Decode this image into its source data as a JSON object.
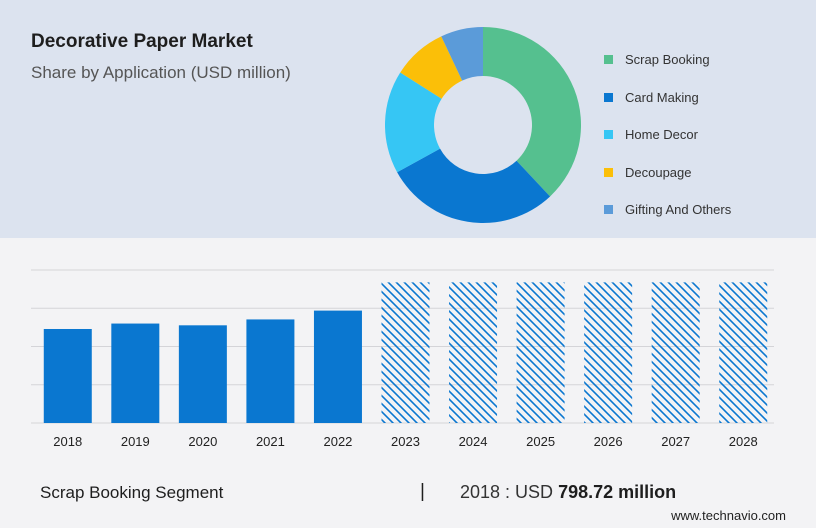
{
  "header": {
    "title": "Decorative Paper Market",
    "subtitle": "Share by Application (USD million)"
  },
  "colors": {
    "bar": "#0a77d0",
    "hatch": "#0a77d0",
    "grid": "#d4d4d8",
    "top_panel": "#dce3ef"
  },
  "chart_data": [
    {
      "type": "pie",
      "variant": "donut",
      "slices": [
        {
          "label": "Scrap Booking",
          "value": 38,
          "color": "#55c08f"
        },
        {
          "label": "Card Making",
          "value": 29,
          "color": "#0a77d0"
        },
        {
          "label": "Home Decor",
          "value": 17,
          "color": "#36c6f4"
        },
        {
          "label": "Decoupage",
          "value": 9,
          "color": "#fbbf08"
        },
        {
          "label": "Gifting And Others",
          "value": 7,
          "color": "#5b9bd9"
        }
      ],
      "legend_position": "right"
    },
    {
      "type": "bar",
      "categories": [
        "2018",
        "2019",
        "2020",
        "2021",
        "2022",
        "2023",
        "2024",
        "2025",
        "2026",
        "2027",
        "2028"
      ],
      "values": [
        798.72,
        845,
        830,
        880,
        955,
        1195,
        1195,
        1195,
        1195,
        1195,
        1195
      ],
      "forecast_from": "2023",
      "ylim": [
        0,
        1300
      ],
      "yticks": [
        0,
        325,
        650,
        975,
        1300
      ],
      "grid": true
    }
  ],
  "footer": {
    "segment": "Scrap Booking Segment",
    "separator": "|",
    "year_prefix": "2018 : USD ",
    "value": "798.72 million",
    "brand": "www.technavio.com"
  }
}
